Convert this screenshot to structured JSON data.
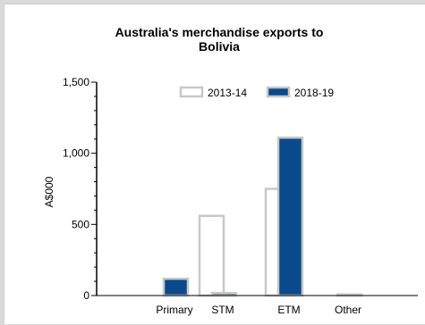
{
  "chart_data": {
    "type": "bar",
    "title_lines": [
      "Australia's merchandise exports to",
      "Bolivia"
    ],
    "ylabel": "A$000",
    "xlabel": "",
    "categories": [
      "Primary",
      "STM",
      "ETM",
      "Other"
    ],
    "series": [
      {
        "name": "2013-14",
        "values": [
          0,
          560,
          750,
          0
        ],
        "fill": "#ffffff",
        "stroke": "#c8c8c8"
      },
      {
        "name": "2018-19",
        "values": [
          118,
          18,
          1110,
          8
        ],
        "fill": "#0b4a8a",
        "stroke": "#c8c8c8"
      }
    ],
    "ylim": [
      0,
      1500
    ],
    "yticks": [
      0,
      500,
      1000,
      1500
    ],
    "ytick_labels": [
      "0",
      "500",
      "1,000",
      "1,500"
    ],
    "grid": false,
    "legend_position": "top"
  }
}
